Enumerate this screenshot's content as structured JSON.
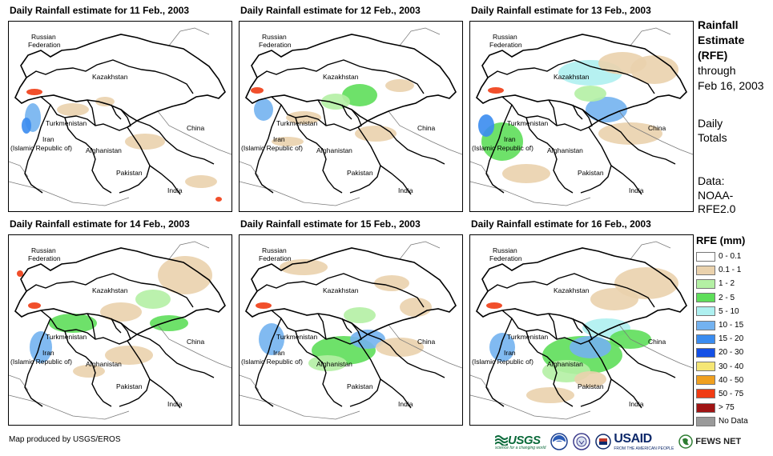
{
  "panels": [
    {
      "title": "Daily Rainfall estimate for 11 Feb., 2003"
    },
    {
      "title": "Daily Rainfall estimate for 12 Feb., 2003"
    },
    {
      "title": "Daily Rainfall estimate for 13 Feb., 2003"
    },
    {
      "title": "Daily Rainfall estimate for 14 Feb., 2003"
    },
    {
      "title": "Daily Rainfall estimate for 15 Feb., 2003"
    },
    {
      "title": "Daily Rainfall estimate for 16 Feb., 2003"
    }
  ],
  "map_labels": {
    "russia_1": "Russian",
    "russia_2": "Federation",
    "kazakhstan": "Kazakhstan",
    "turkmenistan": "Turkmenistan",
    "china": "China",
    "iran_1": "Iran",
    "iran_2": "(Islamic Republic of)",
    "afghanistan": "Afghanistan",
    "pakistan": "Pakistan",
    "india": "India"
  },
  "side": {
    "title_line1": "Rainfall",
    "title_line2": "Estimate",
    "title_line3": "(RFE)",
    "through": "through",
    "date": "Feb 16, 2003",
    "daily": "Daily",
    "totals": "Totals",
    "data_label": "Data:",
    "source_1": "NOAA-",
    "source_2": "RFE2.0"
  },
  "legend": {
    "title": "RFE (mm)",
    "items": [
      {
        "label": "0 - 0.1",
        "color": "#ffffff"
      },
      {
        "label": "0.1 - 1",
        "color": "#ead2ad"
      },
      {
        "label": "1 - 2",
        "color": "#b4f0a4"
      },
      {
        "label": "2 - 5",
        "color": "#5ede5a"
      },
      {
        "label": "5 - 10",
        "color": "#aef0f0"
      },
      {
        "label": "10 - 15",
        "color": "#73b2f0"
      },
      {
        "label": "15 - 20",
        "color": "#3a8cf0"
      },
      {
        "label": "20 - 30",
        "color": "#1450e6"
      },
      {
        "label": "30 - 40",
        "color": "#f5e675"
      },
      {
        "label": "40 - 50",
        "color": "#f0a020"
      },
      {
        "label": "50 - 75",
        "color": "#f03c14"
      },
      {
        "label": "> 75",
        "color": "#a01414"
      },
      {
        "label": "No Data",
        "color": "#9a9a9a"
      }
    ]
  },
  "credit": "Map produced by USGS/EROS",
  "logos": {
    "usgs": "USGS",
    "usgs_tag": "science for a changing world",
    "usaid": "USAID",
    "usaid_sub": "FROM THE AMERICAN PEOPLE",
    "fews": "FEWS NET"
  }
}
